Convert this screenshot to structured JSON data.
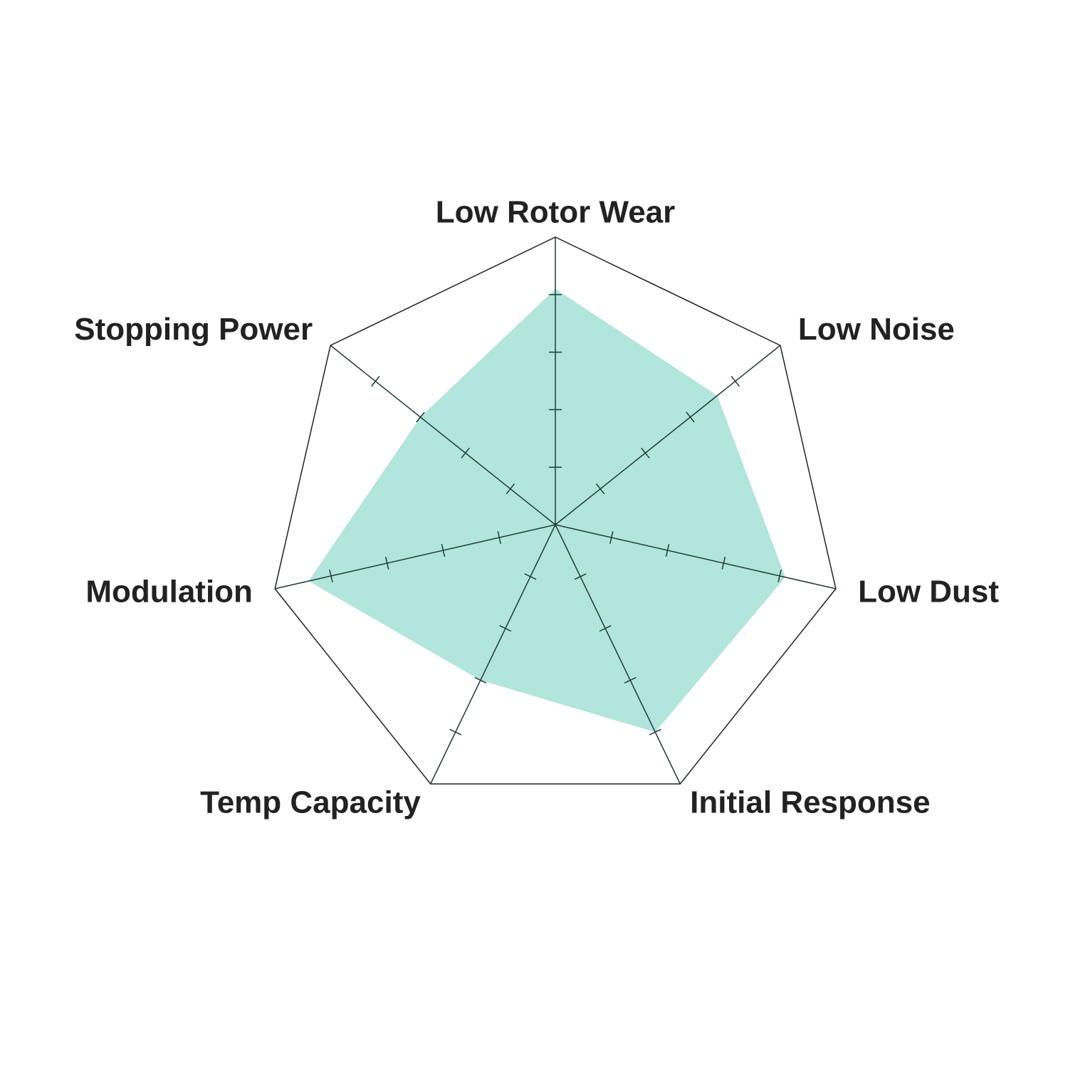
{
  "chart_data": {
    "type": "radar",
    "categories": [
      "Low Rotor Wear",
      "Low Noise",
      "Low Dust",
      "Initial Response",
      "Temp Capacity",
      "Modulation",
      "Stopping Power"
    ],
    "values": [
      4.1,
      3.6,
      4.1,
      4.0,
      3.0,
      4.4,
      3.0
    ],
    "color": "#b2e5dc",
    "rlim": [
      0,
      5
    ],
    "rticks": [
      1,
      2,
      3,
      4
    ]
  }
}
